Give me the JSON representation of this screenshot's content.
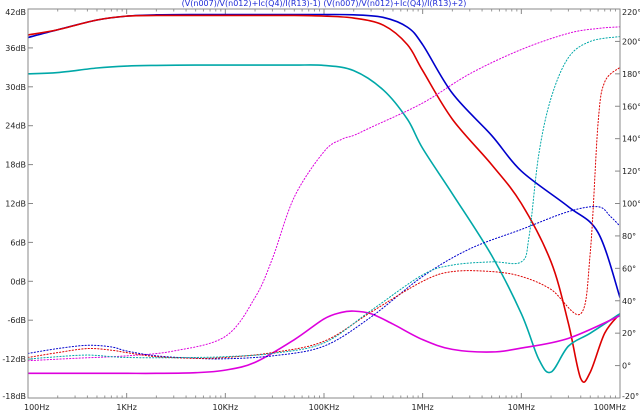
{
  "chart_data": {
    "type": "line",
    "title_parts": [
      {
        "text": "(V(n007)/V(n012)+Ic(Q4)/I(R13)-1)",
        "color": "#1f2bd6"
      },
      {
        "text": "(V(n007)/V(n012)+Ic(Q4)/I(R13)+2)",
        "color": "#1f2bd6"
      }
    ],
    "x_scale": "log",
    "xlim": [
      100,
      100000000
    ],
    "x_ticks": [
      {
        "value": 100,
        "label": "100Hz"
      },
      {
        "value": 1000,
        "label": "1KHz"
      },
      {
        "value": 10000,
        "label": "10KHz"
      },
      {
        "value": 100000,
        "label": "100KHz"
      },
      {
        "value": 1000000,
        "label": "1MHz"
      },
      {
        "value": 10000000,
        "label": "10MHz"
      },
      {
        "value": 100000000,
        "label": "100MHz"
      }
    ],
    "ylim_left": [
      -18,
      42
    ],
    "y_left_ticks": [
      {
        "value": 42,
        "label": "42dB"
      },
      {
        "value": 36,
        "label": "36dB"
      },
      {
        "value": 30,
        "label": "30dB"
      },
      {
        "value": 24,
        "label": "24dB"
      },
      {
        "value": 18,
        "label": "18dB"
      },
      {
        "value": 12,
        "label": "12dB"
      },
      {
        "value": 6,
        "label": "6dB"
      },
      {
        "value": 0,
        "label": "0dB"
      },
      {
        "value": -6,
        "label": "-6dB"
      },
      {
        "value": -12,
        "label": "-12dB"
      },
      {
        "value": -18,
        "label": "-18dB"
      }
    ],
    "ylim_right": [
      -20,
      220
    ],
    "y_right_ticks": [
      {
        "value": 220,
        "label": "220°"
      },
      {
        "value": 200,
        "label": "200°"
      },
      {
        "value": 180,
        "label": "180°"
      },
      {
        "value": 160,
        "label": "160°"
      },
      {
        "value": 140,
        "label": "140°"
      },
      {
        "value": 120,
        "label": "120°"
      },
      {
        "value": 100,
        "label": "100°"
      },
      {
        "value": 80,
        "label": "80°"
      },
      {
        "value": 60,
        "label": "60°"
      },
      {
        "value": 40,
        "label": "40°"
      },
      {
        "value": 20,
        "label": "20°"
      },
      {
        "value": 0,
        "label": "0°"
      },
      {
        "value": -20,
        "label": "-20°"
      }
    ],
    "grid": false,
    "series": [
      {
        "axis": "left",
        "style": "solid",
        "color": "#0000cc",
        "x": [
          100,
          200,
          500,
          1000,
          2000,
          5000,
          10000,
          20000,
          50000,
          100000,
          200000,
          400000,
          700000,
          1000000,
          2000000,
          5000000,
          10000000,
          30000000,
          60000000,
          100000000
        ],
        "y": [
          37.6,
          38.8,
          40.3,
          40.9,
          41.1,
          41.15,
          41.15,
          41.15,
          41.15,
          41.15,
          41.1,
          40.7,
          39.2,
          36.5,
          29,
          22.5,
          17,
          11.5,
          7.5,
          -2.5
        ]
      },
      {
        "axis": "left",
        "style": "solid",
        "color": "#dd0000",
        "x": [
          100,
          200,
          500,
          1000,
          2000,
          5000,
          10000,
          20000,
          50000,
          100000,
          200000,
          400000,
          700000,
          1000000,
          2000000,
          5000000,
          10000000,
          20000000,
          30000000,
          40000000,
          50000000,
          70000000,
          100000000
        ],
        "y": [
          38,
          38.8,
          40.3,
          40.9,
          41,
          41,
          41,
          41,
          41,
          40.9,
          40.6,
          39.5,
          36.5,
          32.5,
          25,
          18,
          12,
          3,
          -6.5,
          -15,
          -14,
          -8,
          -5
        ]
      },
      {
        "axis": "left",
        "style": "solid",
        "color": "#00a8a8",
        "x": [
          100,
          200,
          500,
          1000,
          2000,
          5000,
          10000,
          20000,
          50000,
          100000,
          200000,
          400000,
          700000,
          1000000,
          2000000,
          5000000,
          10000000,
          15000000,
          20000000,
          30000000,
          50000000,
          100000000
        ],
        "y": [
          32,
          32.2,
          32.9,
          33.2,
          33.3,
          33.35,
          33.35,
          33.35,
          33.35,
          33.3,
          32.5,
          29.5,
          25,
          20.5,
          13.5,
          4,
          -5,
          -12,
          -14,
          -10,
          -8,
          -5
        ]
      },
      {
        "axis": "left",
        "style": "solid",
        "color": "#dd00dd",
        "x": [
          100,
          200,
          500,
          1000,
          2000,
          5000,
          10000,
          20000,
          50000,
          100000,
          150000,
          200000,
          300000,
          500000,
          1000000,
          2000000,
          5000000,
          10000000,
          30000000,
          100000000
        ],
        "y": [
          -14.2,
          -14.2,
          -14.2,
          -14.2,
          -14.2,
          -14.1,
          -13.7,
          -12.5,
          -9,
          -5.8,
          -4.8,
          -4.6,
          -5,
          -6.6,
          -9,
          -10.5,
          -10.9,
          -10.3,
          -8.8,
          -5.3
        ]
      },
      {
        "axis": "right",
        "style": "dotted",
        "color": "#dd00dd",
        "x": [
          100,
          300,
          1000,
          3000,
          10000,
          20000,
          30000,
          50000,
          100000,
          150000,
          200000,
          300000,
          1000000,
          3000000,
          10000000,
          30000000,
          60000000,
          100000000
        ],
        "y": [
          3,
          4.5,
          6,
          9,
          18,
          42,
          66,
          104,
          132,
          139.5,
          142,
          147,
          162,
          180,
          195,
          205,
          208,
          209
        ]
      },
      {
        "axis": "right",
        "style": "dotted",
        "color": "#0000cc",
        "x": [
          100,
          200,
          400,
          700,
          1000,
          2000,
          5000,
          10000,
          30000,
          100000,
          300000,
          1000000,
          3000000,
          10000000,
          30000000,
          60000000,
          80000000,
          100000000
        ],
        "y": [
          7.5,
          10.5,
          12.5,
          11.5,
          9,
          6,
          4.5,
          4.2,
          6,
          12,
          30,
          55,
          72,
          84,
          95,
          98,
          92,
          86
        ]
      },
      {
        "axis": "right",
        "style": "dotted",
        "color": "#dd0000",
        "x": [
          100,
          200,
          400,
          700,
          1000,
          2000,
          5000,
          10000,
          30000,
          100000,
          300000,
          1000000,
          2000000,
          5000000,
          10000000,
          20000000,
          40000000,
          50000000,
          60000000,
          70000000,
          100000000
        ],
        "y": [
          5,
          8,
          10.5,
          9.5,
          8,
          5.5,
          4.5,
          5,
          8,
          15,
          33,
          52,
          58,
          58,
          55,
          47,
          32,
          70,
          150,
          175,
          184
        ]
      },
      {
        "axis": "right",
        "style": "dotted",
        "color": "#00a8a8",
        "x": [
          100,
          200,
          400,
          700,
          1000,
          2000,
          5000,
          10000,
          30000,
          100000,
          300000,
          1000000,
          2000000,
          5000000,
          10000000,
          12000000,
          15000000,
          20000000,
          30000000,
          50000000,
          100000000
        ],
        "y": [
          4,
          5.5,
          6.5,
          5.5,
          5,
          4.8,
          5,
          5.5,
          7.5,
          14,
          34,
          56,
          62,
          64,
          64,
          80,
          130,
          165,
          190,
          200,
          203
        ]
      }
    ]
  }
}
